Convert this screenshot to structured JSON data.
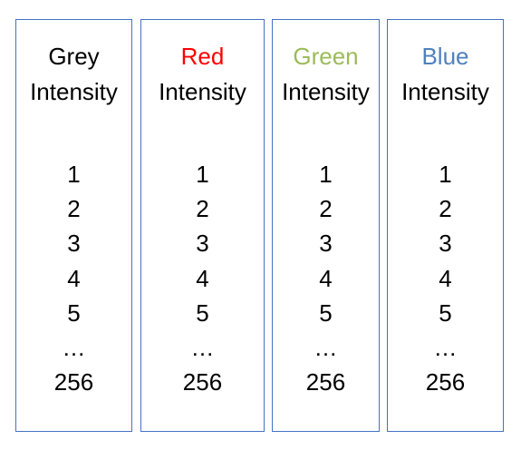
{
  "colors": {
    "border": "#4472c4",
    "grey_label": "#000000",
    "red_label": "#ff0000",
    "green_label": "#9bbb59",
    "blue_label": "#4f81bd"
  },
  "columns": [
    {
      "name": "Grey",
      "subtitle": "Intensity",
      "values": [
        "1",
        "2",
        "3",
        "4",
        "5",
        "…",
        "256"
      ]
    },
    {
      "name": "Red",
      "subtitle": "Intensity",
      "values": [
        "1",
        "2",
        "3",
        "4",
        "5",
        "…",
        "256"
      ]
    },
    {
      "name": "Green",
      "subtitle": "Intensity",
      "values": [
        "1",
        "2",
        "3",
        "4",
        "5",
        "…",
        "256"
      ]
    },
    {
      "name": "Blue",
      "subtitle": "Intensity",
      "values": [
        "1",
        "2",
        "3",
        "4",
        "5",
        "…",
        "256"
      ]
    }
  ]
}
